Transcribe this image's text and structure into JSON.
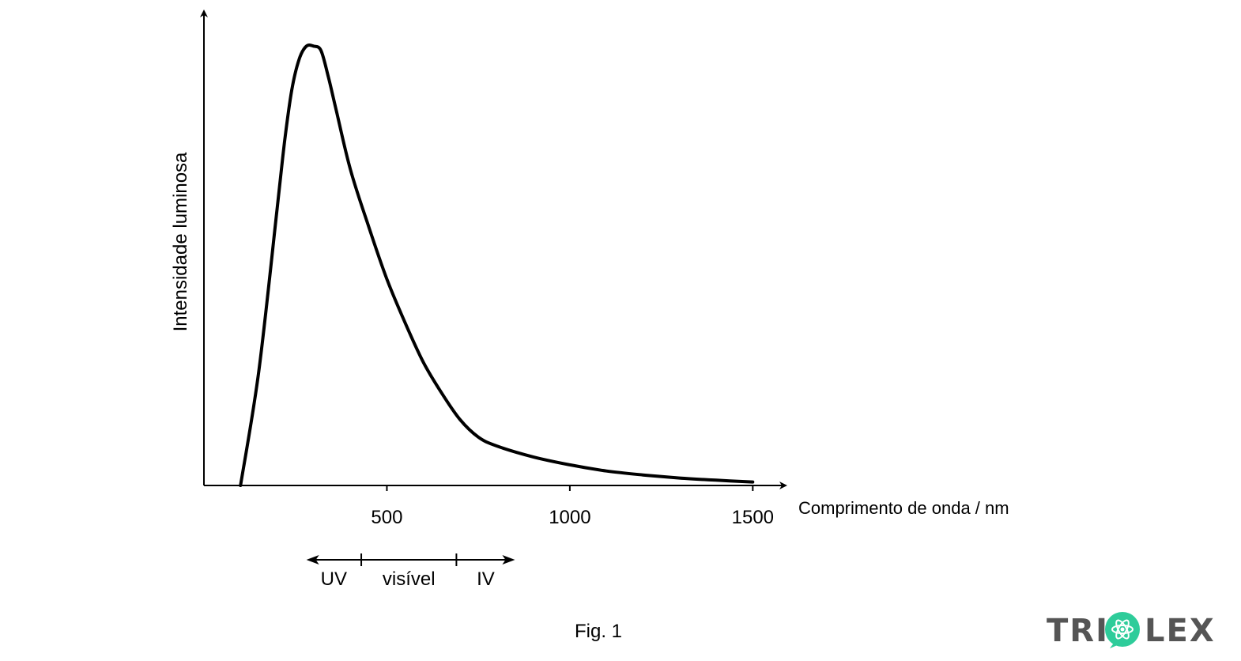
{
  "chart_data": {
    "type": "line",
    "title": "",
    "xlabel": "Comprimento de onda / nm",
    "ylabel": "Intensidade luminosa",
    "xlim": [
      0,
      1590
    ],
    "ylim": [
      0,
      1.08
    ],
    "x_ticks": [
      500,
      1000,
      1500
    ],
    "x_tick_labels": [
      "500",
      "1000",
      "1500"
    ],
    "y_ticks": [],
    "grid": false,
    "series": [
      {
        "x": [
          100,
          150,
          200,
          220,
          240,
          260,
          280,
          300,
          320,
          340,
          360,
          400,
          450,
          500,
          550,
          600,
          650,
          700,
          750,
          800,
          900,
          1000,
          1100,
          1200,
          1300,
          1400,
          1500
        ],
        "y": [
          0.0,
          0.26,
          0.63,
          0.78,
          0.9,
          0.97,
          1.0,
          1.0,
          0.99,
          0.93,
          0.86,
          0.72,
          0.59,
          0.47,
          0.37,
          0.28,
          0.21,
          0.15,
          0.11,
          0.09,
          0.065,
          0.047,
          0.033,
          0.024,
          0.017,
          0.012,
          0.008
        ]
      }
    ],
    "regions": [
      {
        "label": "UV",
        "x": [
          280,
          430
        ]
      },
      {
        "label": "visível",
        "x": [
          430,
          690
        ]
      },
      {
        "label": "IV",
        "x": [
          690,
          850
        ]
      }
    ],
    "region_boundaries": [
      430,
      690
    ],
    "region_arrow_range": [
      280,
      850
    ]
  },
  "caption": "Fig. 1",
  "logo": {
    "text_left": "TRI",
    "text_right": "LEX",
    "color": "#555555",
    "accent": "#2ecc9a",
    "icon": "atom-icon"
  },
  "colors": {
    "curve": "#000000",
    "axes": "#000000"
  }
}
